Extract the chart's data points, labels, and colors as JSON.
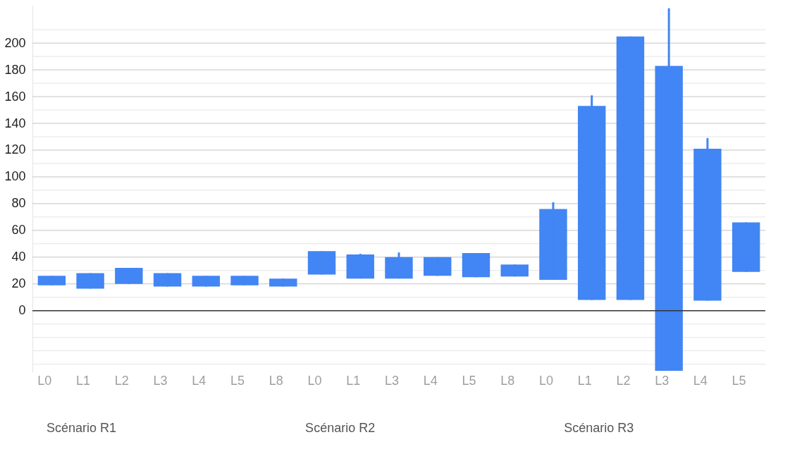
{
  "chart_data": {
    "type": "candlestick",
    "categories": [
      "L0",
      "L1",
      "L2",
      "L3",
      "L4",
      "L5",
      "L8",
      "L0",
      "L1",
      "L3",
      "L4",
      "L5",
      "L8",
      "L0",
      "L1",
      "L2",
      "L3",
      "L4",
      "L5"
    ],
    "ohlc": [
      [
        26,
        26,
        19,
        19
      ],
      [
        28,
        28,
        16.5,
        16.5
      ],
      [
        32,
        32,
        20,
        20
      ],
      [
        28,
        28,
        18,
        18
      ],
      [
        26,
        26,
        18,
        18
      ],
      [
        26,
        26,
        19,
        19
      ],
      [
        24,
        24,
        18,
        18
      ],
      [
        44.5,
        44.5,
        27,
        27
      ],
      [
        42,
        42.5,
        24,
        24
      ],
      [
        40,
        43.5,
        24,
        24
      ],
      [
        40,
        40,
        26,
        26
      ],
      [
        43,
        43,
        25,
        25
      ],
      [
        34.5,
        34.5,
        25.5,
        25.5
      ],
      [
        76,
        81,
        23,
        23
      ],
      [
        153,
        161,
        8,
        8
      ],
      [
        205,
        205,
        8,
        8
      ],
      [
        183,
        226,
        -45,
        -45
      ],
      [
        121,
        129,
        7.5,
        7.5
      ],
      [
        66,
        66,
        29,
        29
      ]
    ],
    "color": "#4285f4",
    "ylim": [
      -46,
      228
    ],
    "yticks": [
      {
        "value": -40,
        "label": null
      },
      {
        "value": -30,
        "label": null
      },
      {
        "value": -20,
        "label": null
      },
      {
        "value": -10,
        "label": null
      },
      0,
      {
        "value": 10,
        "label": null
      },
      20,
      {
        "value": 30,
        "label": null
      },
      40,
      {
        "value": 50,
        "label": null
      },
      60,
      {
        "value": 70,
        "label": null
      },
      80,
      {
        "value": 90,
        "label": null
      },
      100,
      {
        "value": 110,
        "label": null
      },
      120,
      {
        "value": 130,
        "label": null
      },
      140,
      {
        "value": 150,
        "label": null
      },
      160,
      {
        "value": 170,
        "label": null
      },
      180,
      {
        "value": 190,
        "label": null
      },
      200,
      {
        "value": 210,
        "label": null
      }
    ],
    "grid": "y",
    "ref_lines": [
      {
        "axis": "y",
        "value": 0,
        "color": "#333333"
      }
    ],
    "annotations": [
      "Scénario R1",
      "Scénario R2",
      "Scénario R3"
    ]
  }
}
